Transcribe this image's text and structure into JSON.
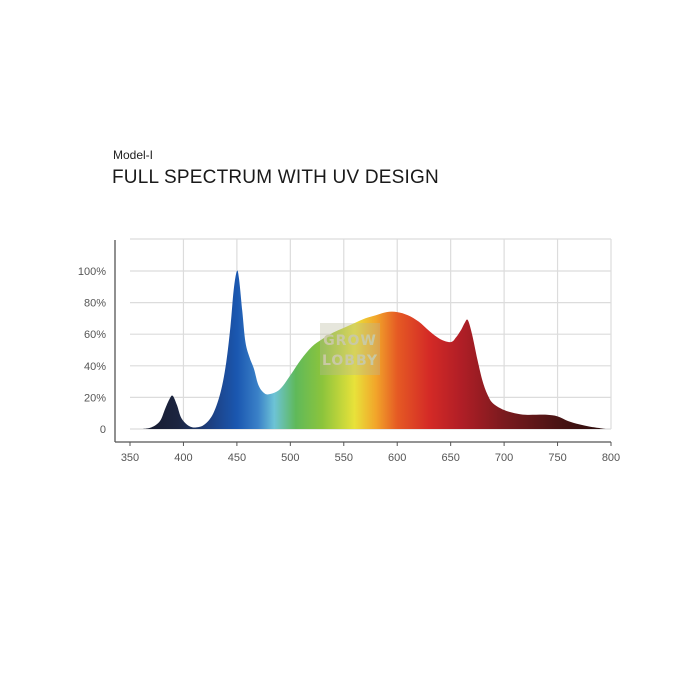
{
  "header": {
    "model": "Model-I",
    "title": "FULL SPECTRUM WITH UV DESIGN"
  },
  "watermark": {
    "line1": "GROW",
    "line2": "LOBBY"
  },
  "chart_data": {
    "type": "area",
    "title": "FULL SPECTRUM WITH UV DESIGN",
    "xlabel": "",
    "ylabel": "",
    "xlim": [
      350,
      800
    ],
    "ylim": [
      0,
      100
    ],
    "grid": true,
    "x_ticks": [
      350,
      400,
      450,
      500,
      550,
      600,
      650,
      700,
      750,
      800
    ],
    "y_ticks": [
      {
        "value": 0,
        "label": "0"
      },
      {
        "value": 20,
        "label": "20%"
      },
      {
        "value": 40,
        "label": "40%"
      },
      {
        "value": 60,
        "label": "60%"
      },
      {
        "value": 80,
        "label": "80%"
      },
      {
        "value": 100,
        "label": "100%"
      }
    ],
    "x": [
      362,
      370,
      378,
      383,
      387,
      390,
      394,
      398,
      405,
      412,
      420,
      428,
      435,
      440,
      444,
      447,
      450,
      452,
      455,
      458,
      462,
      466,
      470,
      475,
      480,
      490,
      500,
      510,
      520,
      530,
      540,
      550,
      560,
      570,
      580,
      590,
      600,
      610,
      620,
      630,
      640,
      650,
      655,
      660,
      663,
      666,
      670,
      675,
      680,
      685,
      690,
      700,
      710,
      720,
      730,
      740,
      750,
      760,
      770,
      780,
      790,
      795
    ],
    "y": [
      0,
      1,
      5,
      13,
      19,
      21,
      15,
      7,
      2,
      1,
      3,
      10,
      24,
      42,
      65,
      88,
      100,
      95,
      75,
      55,
      45,
      38,
      28,
      23,
      22,
      25,
      34,
      44,
      52,
      57,
      61,
      64,
      67,
      70,
      72,
      74,
      74,
      72,
      68,
      62,
      57,
      55,
      58,
      63,
      67,
      69,
      60,
      44,
      30,
      21,
      16,
      12,
      10,
      9,
      9,
      9,
      8,
      5,
      3,
      1.5,
      0.5,
      0
    ],
    "spectrum_colors": [
      {
        "nm": 362,
        "color": "#161a2e"
      },
      {
        "nm": 395,
        "color": "#1c2540"
      },
      {
        "nm": 425,
        "color": "#1d3f80"
      },
      {
        "nm": 450,
        "color": "#1a57b0"
      },
      {
        "nm": 470,
        "color": "#3b82c8"
      },
      {
        "nm": 485,
        "color": "#6dc3d6"
      },
      {
        "nm": 505,
        "color": "#5fb95a"
      },
      {
        "nm": 530,
        "color": "#8cc43c"
      },
      {
        "nm": 560,
        "color": "#e8e23a"
      },
      {
        "nm": 580,
        "color": "#f2a52a"
      },
      {
        "nm": 600,
        "color": "#e55a24"
      },
      {
        "nm": 630,
        "color": "#d42a26"
      },
      {
        "nm": 660,
        "color": "#b01e26"
      },
      {
        "nm": 700,
        "color": "#7a1a1e"
      },
      {
        "nm": 750,
        "color": "#4a1414"
      },
      {
        "nm": 795,
        "color": "#2a0d0d"
      }
    ]
  }
}
